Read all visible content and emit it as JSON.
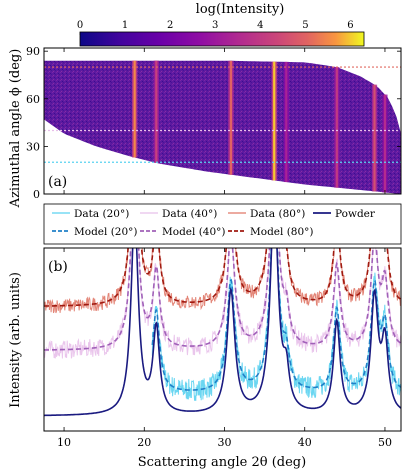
{
  "colorbar": {
    "label": "log(Intensity)",
    "ticks": [
      "0",
      "1",
      "2",
      "3",
      "4",
      "5",
      "6"
    ],
    "range": [
      0,
      6.3
    ],
    "colormap": "plasma"
  },
  "chart_data": [
    {
      "type": "heatmap",
      "panel_label": "(a)",
      "xlabel": "",
      "ylabel": "Azimuthal angle ϕ (deg)",
      "xlim": [
        7.5,
        52
      ],
      "ylim": [
        0,
        92
      ],
      "yticks": [
        "0",
        "30",
        "60",
        "90"
      ],
      "background_level": 1.4,
      "rings": [
        {
          "two_theta": 18.8,
          "log_intensity": 5.5
        },
        {
          "two_theta": 21.5,
          "log_intensity": 4.2
        },
        {
          "two_theta": 30.8,
          "log_intensity": 5.0
        },
        {
          "two_theta": 36.2,
          "log_intensity": 6.0
        },
        {
          "two_theta": 37.7,
          "log_intensity": 3.3
        },
        {
          "two_theta": 44.0,
          "log_intensity": 4.0
        },
        {
          "two_theta": 48.7,
          "log_intensity": 4.6
        },
        {
          "two_theta": 50.0,
          "log_intensity": 3.6
        }
      ],
      "coverage": {
        "phi_min_at_two_theta": [
          [
            7.5,
            47
          ],
          [
            10,
            38
          ],
          [
            14,
            30
          ],
          [
            18,
            24
          ],
          [
            22,
            19
          ],
          [
            28,
            14
          ],
          [
            34,
            10
          ],
          [
            40,
            6
          ],
          [
            46,
            3
          ],
          [
            52,
            0
          ]
        ],
        "phi_max_at_two_theta": [
          [
            7.5,
            84
          ],
          [
            30,
            84
          ],
          [
            40,
            83
          ],
          [
            44,
            80
          ],
          [
            47,
            74
          ],
          [
            49,
            68
          ],
          [
            50.5,
            60
          ],
          [
            51.5,
            48
          ],
          [
            52,
            38
          ]
        ]
      },
      "cut_lines": [
        {
          "phi": 20,
          "color": "#5ad2f0"
        },
        {
          "phi": 40,
          "color": "#e8c0ea"
        },
        {
          "phi": 80,
          "color": "#e06a60"
        }
      ]
    },
    {
      "type": "line",
      "panel_label": "(b)",
      "xlabel": "Scattering angle 2θ (deg)",
      "ylabel": "Intensity (arb. units)",
      "xlim": [
        7.5,
        52
      ],
      "ylim": [
        0,
        1
      ],
      "xticks": [
        "10",
        "20",
        "30",
        "40",
        "50"
      ],
      "peaks": [
        {
          "two_theta": 18.8,
          "height": 2.6,
          "width": 0.55
        },
        {
          "two_theta": 21.5,
          "height": 1.1,
          "width": 0.5
        },
        {
          "two_theta": 30.8,
          "height": 1.6,
          "width": 0.6
        },
        {
          "two_theta": 36.2,
          "height": 2.8,
          "width": 0.6
        },
        {
          "two_theta": 37.7,
          "height": 0.45,
          "width": 0.45
        },
        {
          "two_theta": 44.0,
          "height": 1.2,
          "width": 0.5
        },
        {
          "two_theta": 48.7,
          "height": 1.5,
          "width": 0.55
        },
        {
          "two_theta": 50.0,
          "height": 0.9,
          "width": 0.5
        }
      ],
      "series": [
        {
          "name": "Powder",
          "kind": "line",
          "color": "#1a1a80",
          "offset": 0.06,
          "scale": 0.42,
          "x_range": [
            7.5,
            52
          ]
        },
        {
          "name": "Data (20°)",
          "kind": "noisy",
          "color": "#5ad2f0",
          "offset": 0.18,
          "scale": 0.38,
          "noise": 0.06,
          "x_range": [
            21,
            52
          ]
        },
        {
          "name": "Model (20°)",
          "kind": "dashed",
          "color": "#2080c8",
          "offset": 0.18,
          "scale": 0.38,
          "x_range": [
            21,
            52
          ]
        },
        {
          "name": "Data (40°)",
          "kind": "noisy",
          "color": "#e8c0ea",
          "offset": 0.42,
          "scale": 0.38,
          "noise": 0.05,
          "x_range": [
            7.5,
            52
          ]
        },
        {
          "name": "Model (40°)",
          "kind": "dashed",
          "color": "#a060b8",
          "offset": 0.42,
          "scale": 0.38,
          "x_range": [
            7.5,
            52
          ]
        },
        {
          "name": "Data (80°)",
          "kind": "noisy",
          "color": "#e07868",
          "offset": 0.66,
          "scale": 0.38,
          "noise": 0.04,
          "x_range": [
            7.5,
            52
          ]
        },
        {
          "name": "Model (80°)",
          "kind": "dashed",
          "color": "#a01a10",
          "offset": 0.66,
          "scale": 0.38,
          "x_range": [
            7.5,
            52
          ]
        }
      ],
      "legend": {
        "placement": "top",
        "rows": [
          [
            "Data (20°)",
            "Data (40°)",
            "Data (80°)",
            "Powder"
          ],
          [
            "Model (20°)",
            "Model (40°)",
            "Model (80°)"
          ]
        ]
      }
    }
  ]
}
